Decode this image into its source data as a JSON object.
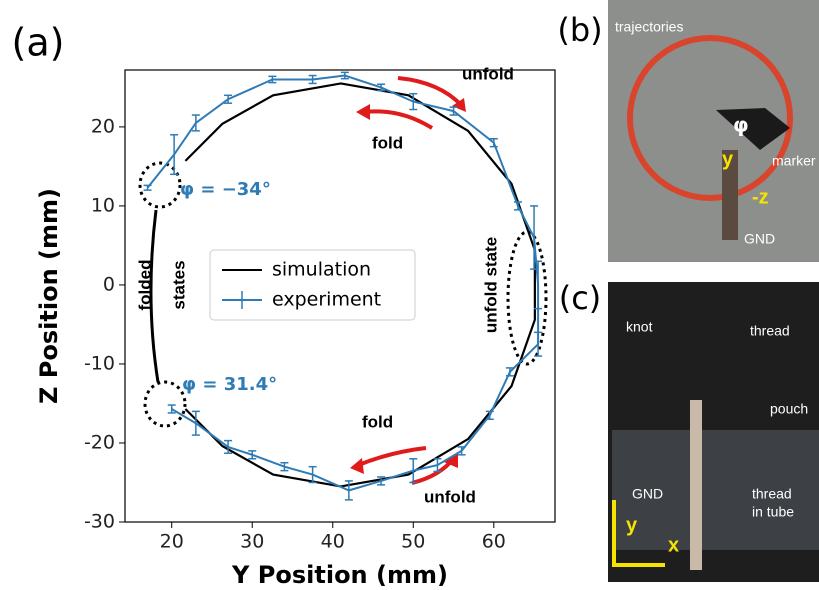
{
  "chart_data": {
    "type": "line",
    "panel_label": "(a)",
    "x_label": "Y Position (mm)",
    "y_label": "Z Position (mm)",
    "xlim": [
      14.2,
      67.6
    ],
    "ylim": [
      -30,
      27.2
    ],
    "xticks": [
      20,
      30,
      40,
      50,
      60
    ],
    "yticks": [
      -30,
      -20,
      -10,
      0,
      10,
      20
    ],
    "legend": "center-left",
    "series": [
      {
        "name": "simulation",
        "color": "#000000",
        "x": [
          21.7,
          26.3,
          32.6,
          41,
          49.4,
          56.8,
          62.2,
          65.1,
          65.1,
          62.2,
          56.8,
          49.4,
          41,
          32.6,
          26.3,
          21.7
        ],
        "values": [
          15.7,
          20.4,
          24.0,
          25.5,
          24.0,
          19.5,
          12.8,
          4.4,
          -4.4,
          -12.8,
          -19.5,
          -24.0,
          -25.5,
          -24.0,
          -20.4,
          -15.7
        ]
      },
      {
        "name": "experiment",
        "color": "#2f7bb5",
        "x": [
          17,
          20.3,
          23,
          27,
          32.5,
          37.5,
          41.5,
          46,
          50,
          55,
          60,
          63,
          65,
          65.5,
          65.5,
          62,
          59.5,
          56,
          53,
          50,
          46,
          42,
          37.5,
          34,
          30,
          27,
          23,
          20
        ],
        "values": [
          12.3,
          16.5,
          20.5,
          23.5,
          26,
          26,
          26.5,
          25,
          23.2,
          22,
          18,
          10,
          6,
          0,
          -7.5,
          -11,
          -16.5,
          -21,
          -22.8,
          -23.5,
          -24.8,
          -26,
          -24,
          -23,
          -21.5,
          -20.5,
          -17.5,
          -15.7
        ],
        "errors": [
          0.3,
          2.5,
          1,
          0.5,
          0.4,
          0.5,
          0.4,
          0.4,
          1,
          0.5,
          0.5,
          0.5,
          4,
          3,
          1.5,
          0.5,
          0.5,
          0.5,
          0.8,
          1.5,
          0.5,
          1.2,
          1,
          0.5,
          0.5,
          0.8,
          1.5,
          0.5
        ]
      }
    ],
    "annotations": {
      "unfold_top": "unfold",
      "fold_top": "fold",
      "fold_bottom": "fold",
      "unfold_bottom": "unfold",
      "phi_top": "φ = −34°",
      "phi_bottom": "φ = 31.4°",
      "folded": "folded",
      "states": "states",
      "unfold_state": "unfold state"
    }
  },
  "photo_b": {
    "label": "(b)",
    "trajectories": "trajectories",
    "phi": "φ",
    "marker": "marker",
    "y": "y",
    "z": "-z",
    "gnd": "GND"
  },
  "photo_c": {
    "label": "(c)",
    "knot": "knot",
    "thread": "thread",
    "pouch": "pouch",
    "gnd": "GND",
    "thread_in": "thread",
    "in_tube": "in tube",
    "y": "y",
    "x": "x"
  }
}
